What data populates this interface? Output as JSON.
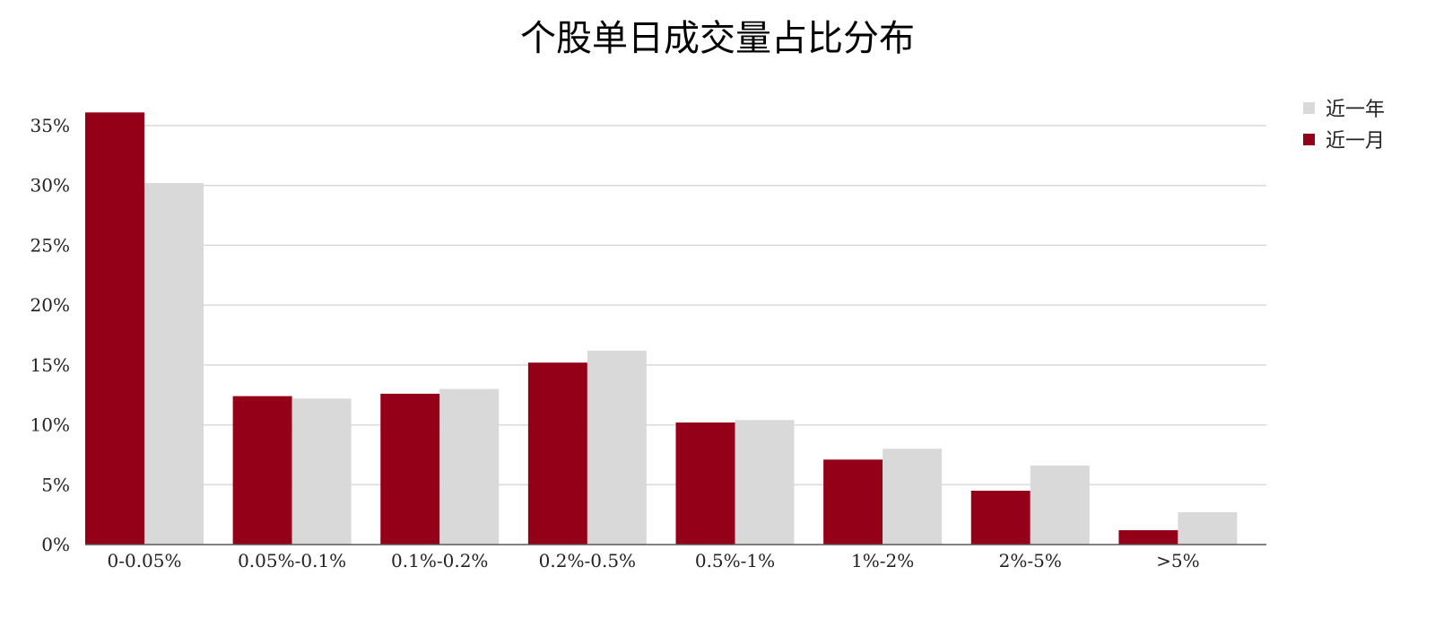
{
  "chart_data": {
    "type": "bar",
    "title": "个股单日成交量占比分布",
    "categories": [
      "0-0.05%",
      "0.05%-0.1%",
      "0.1%-0.2%",
      "0.2%-0.5%",
      "0.5%-1%",
      "1%-2%",
      "2%-5%",
      ">5%"
    ],
    "series": [
      {
        "name": "近一月",
        "color": "#950019",
        "values": [
          36.1,
          12.4,
          12.6,
          15.2,
          10.2,
          7.1,
          4.5,
          1.2
        ]
      },
      {
        "name": "近一年",
        "color": "#d9d9d9",
        "values": [
          30.2,
          12.2,
          13.0,
          16.2,
          10.4,
          8.0,
          6.6,
          2.7
        ]
      }
    ],
    "ylim": [
      0,
      35
    ],
    "yticks": [
      "0%",
      "5%",
      "10%",
      "15%",
      "20%",
      "25%",
      "30%",
      "35%"
    ],
    "ytick_values": [
      0,
      5,
      10,
      15,
      20,
      25,
      30,
      35
    ],
    "grid": true,
    "legend_position": "top-right",
    "legend_order": [
      "近一年",
      "近一月"
    ],
    "xlabel": "",
    "ylabel": ""
  }
}
